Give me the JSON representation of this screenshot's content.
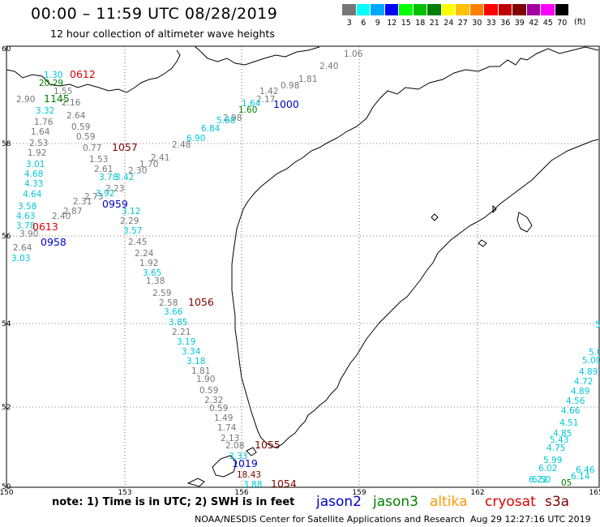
{
  "header": {
    "title": "00:00 – 11:59 UTC 08/28/2019",
    "subtitle": "12 hour collection of altimeter wave heights"
  },
  "legend": {
    "unit": "(ft)",
    "bins": [
      {
        "label": "3",
        "color": "#777777"
      },
      {
        "label": "6",
        "color": "#00ffff"
      },
      {
        "label": "9",
        "color": "#00a8ff"
      },
      {
        "label": "12",
        "color": "#0000ff"
      },
      {
        "label": "15",
        "color": "#00ff00"
      },
      {
        "label": "18",
        "color": "#00c000"
      },
      {
        "label": "21",
        "color": "#008000"
      },
      {
        "label": "24",
        "color": "#ffff00"
      },
      {
        "label": "27",
        "color": "#ffc000"
      },
      {
        "label": "30",
        "color": "#ff8000"
      },
      {
        "label": "33",
        "color": "#ff0000"
      },
      {
        "label": "36",
        "color": "#c00000"
      },
      {
        "label": "39",
        "color": "#800000"
      },
      {
        "label": "42",
        "color": "#a000a0"
      },
      {
        "label": "45",
        "color": "#ff00ff"
      },
      {
        "label": "70",
        "color": "#000000"
      }
    ]
  },
  "axes": {
    "lat_labels": [
      "60",
      "58",
      "56",
      "54",
      "52",
      "50"
    ],
    "lon_labels": [
      "150",
      "153",
      "156",
      "159",
      "162",
      "165"
    ]
  },
  "observations": [
    {
      "text": "1.06",
      "color": "#777777"
    },
    {
      "text": "2.40",
      "color": "#777777"
    },
    {
      "text": "1.81",
      "color": "#777777"
    },
    {
      "text": "0.98",
      "color": "#777777"
    },
    {
      "text": "1.42",
      "color": "#777777"
    },
    {
      "text": "2.17",
      "color": "#777777"
    },
    {
      "text": "1000",
      "color": "#0000cc"
    },
    {
      "text": "1.64",
      "color": "#00c8d8"
    },
    {
      "text": "1.60",
      "color": "#008000"
    },
    {
      "text": "2.98",
      "color": "#777777"
    },
    {
      "text": "5.88",
      "color": "#00c8d8"
    },
    {
      "text": "6.84",
      "color": "#00c8d8"
    },
    {
      "text": "6.90",
      "color": "#00c8d8"
    },
    {
      "text": "2.48",
      "color": "#777777"
    },
    {
      "text": "2.41",
      "color": "#777777"
    },
    {
      "text": "1.70",
      "color": "#777777"
    },
    {
      "text": "2.30",
      "color": "#777777"
    },
    {
      "text": "0612",
      "color": "#dd0000"
    },
    {
      "text": "1.30",
      "color": "#00c8d8"
    },
    {
      "text": "20.29",
      "color": "#008000"
    },
    {
      "text": "1.55",
      "color": "#777777"
    },
    {
      "text": "2.90",
      "color": "#777777"
    },
    {
      "text": "1145",
      "color": "#008000"
    },
    {
      "text": "2.16",
      "color": "#777777"
    },
    {
      "text": "3.32",
      "color": "#00c8d8"
    },
    {
      "text": "2.64",
      "color": "#777777"
    },
    {
      "text": "1.76",
      "color": "#777777"
    },
    {
      "text": "0.59",
      "color": "#777777"
    },
    {
      "text": "1.64",
      "color": "#777777"
    },
    {
      "text": "0.59",
      "color": "#777777"
    },
    {
      "text": "2.53",
      "color": "#777777"
    },
    {
      "text": "0.77",
      "color": "#777777"
    },
    {
      "text": "1057",
      "color": "#800000"
    },
    {
      "text": "1.92",
      "color": "#777777"
    },
    {
      "text": "1.53",
      "color": "#777777"
    },
    {
      "text": "3.01",
      "color": "#00c8d8"
    },
    {
      "text": "2.61",
      "color": "#777777"
    },
    {
      "text": "4.68",
      "color": "#00c8d8"
    },
    {
      "text": "3.78",
      "color": "#00c8d8"
    },
    {
      "text": "3.42",
      "color": "#00c8d8"
    },
    {
      "text": "4.33",
      "color": "#00c8d8"
    },
    {
      "text": "2.23",
      "color": "#777777"
    },
    {
      "text": "4.64",
      "color": "#00c8d8"
    },
    {
      "text": "3.92",
      "color": "#00c8d8"
    },
    {
      "text": "2.73",
      "color": "#777777"
    },
    {
      "text": "2.31",
      "color": "#777777"
    },
    {
      "text": "0959",
      "color": "#0000cc"
    },
    {
      "text": "3.58",
      "color": "#00c8d8"
    },
    {
      "text": "2.87",
      "color": "#777777"
    },
    {
      "text": "3.12",
      "color": "#00c8d8"
    },
    {
      "text": "4.63",
      "color": "#00c8d8"
    },
    {
      "text": "2.40",
      "color": "#777777"
    },
    {
      "text": "2.29",
      "color": "#777777"
    },
    {
      "text": "3.78",
      "color": "#00c8d8"
    },
    {
      "text": "0613",
      "color": "#dd0000"
    },
    {
      "text": "3.57",
      "color": "#00c8d8"
    },
    {
      "text": "3.90",
      "color": "#777777"
    },
    {
      "text": "2.45",
      "color": "#777777"
    },
    {
      "text": "0958",
      "color": "#0000cc"
    },
    {
      "text": "2.64",
      "color": "#777777"
    },
    {
      "text": "2.24",
      "color": "#777777"
    },
    {
      "text": "3.03",
      "color": "#00c8d8"
    },
    {
      "text": "1.92",
      "color": "#777777"
    },
    {
      "text": "3.65",
      "color": "#00c8d8"
    },
    {
      "text": "1.38",
      "color": "#777777"
    },
    {
      "text": "2.59",
      "color": "#777777"
    },
    {
      "text": "2.58",
      "color": "#777777"
    },
    {
      "text": "1056",
      "color": "#800000"
    },
    {
      "text": "3.66",
      "color": "#00c8d8"
    },
    {
      "text": "3.85",
      "color": "#00c8d8"
    },
    {
      "text": "2.21",
      "color": "#777777"
    },
    {
      "text": "3.19",
      "color": "#00c8d8"
    },
    {
      "text": "3.34",
      "color": "#00c8d8"
    },
    {
      "text": "3.18",
      "color": "#00c8d8"
    },
    {
      "text": "1.81",
      "color": "#777777"
    },
    {
      "text": "1.90",
      "color": "#777777"
    },
    {
      "text": "0.59",
      "color": "#777777"
    },
    {
      "text": "2.32",
      "color": "#777777"
    },
    {
      "text": "0.59",
      "color": "#777777"
    },
    {
      "text": "1.49",
      "color": "#777777"
    },
    {
      "text": "1.74",
      "color": "#777777"
    },
    {
      "text": "2.13",
      "color": "#777777"
    },
    {
      "text": "2.08",
      "color": "#777777"
    },
    {
      "text": "1055",
      "color": "#800000"
    },
    {
      "text": "3.33",
      "color": "#00c8d8"
    },
    {
      "text": "1019",
      "color": "#0000cc"
    },
    {
      "text": "18.43",
      "color": "#800000"
    },
    {
      "text": "3.88",
      "color": "#00c8d8"
    },
    {
      "text": "1054",
      "color": "#800000"
    },
    {
      "text": "5.",
      "color": "#00c8d8"
    },
    {
      "text": "5.0",
      "color": "#00c8d8"
    },
    {
      "text": "5.00",
      "color": "#00c8d8"
    },
    {
      "text": "4.89",
      "color": "#00c8d8"
    },
    {
      "text": "4.72",
      "color": "#00c8d8"
    },
    {
      "text": "4.89",
      "color": "#00c8d8"
    },
    {
      "text": "4.56",
      "color": "#00c8d8"
    },
    {
      "text": "4.66",
      "color": "#00c8d8"
    },
    {
      "text": "4.51",
      "color": "#00c8d8"
    },
    {
      "text": "4.85",
      "color": "#00c8d8"
    },
    {
      "text": "5.43",
      "color": "#00c8d8"
    },
    {
      "text": "4.75",
      "color": "#00c8d8"
    },
    {
      "text": "5.99",
      "color": "#00c8d8"
    },
    {
      "text": "6.02",
      "color": "#00c8d8"
    },
    {
      "text": "6.50",
      "color": "#00c8d8"
    },
    {
      "text": "6.21",
      "color": "#00c8d8"
    },
    {
      "text": "6.46",
      "color": "#00c8d8"
    },
    {
      "text": "6.14",
      "color": "#00c8d8"
    },
    {
      "text": "05",
      "color": "#008000"
    }
  ],
  "footer": {
    "note": "note:  1) Time is in UTC;  2) SWH is in feet",
    "missions": [
      {
        "text": "jason2",
        "color": "#0000cc"
      },
      {
        "text": "jason3",
        "color": "#008000"
      },
      {
        "text": "altika",
        "color": "#ff9900"
      },
      {
        "text": "cryosat",
        "color": "#dd0000"
      },
      {
        "text": "s3a",
        "color": "#800000"
      }
    ],
    "credit": "NOAA/NESDIS Center for Satellite Applications and Research",
    "timestamp": "Aug 29 12:27:16 UTC 2019"
  }
}
